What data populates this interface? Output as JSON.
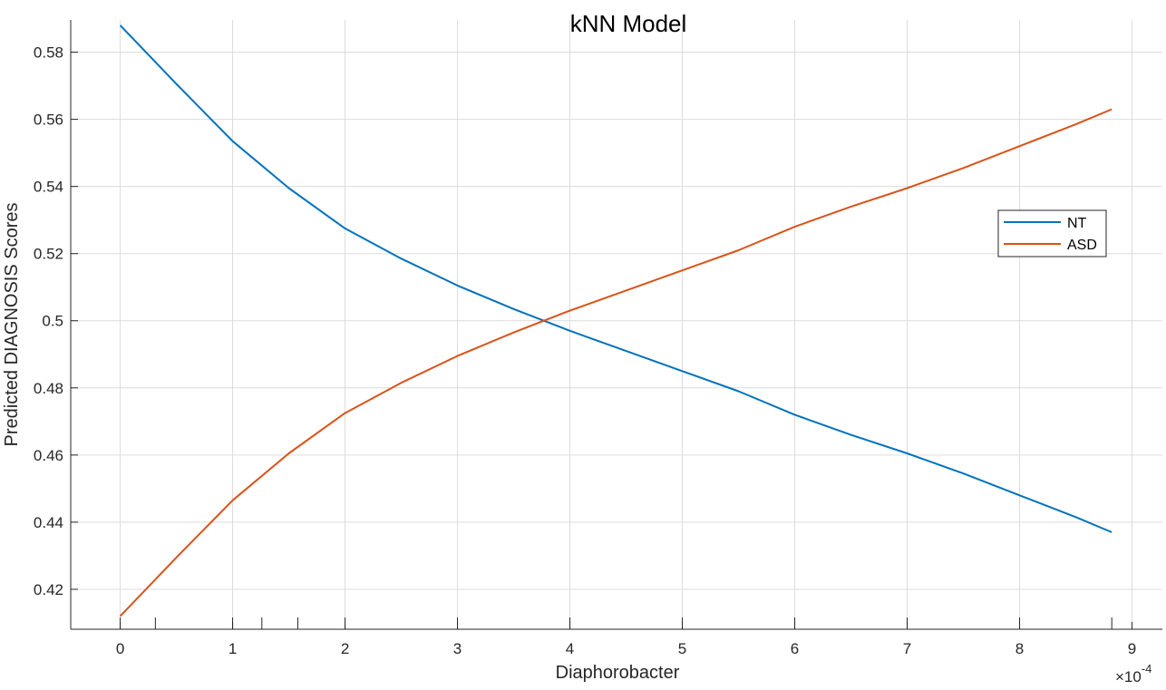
{
  "chart_data": {
    "type": "line",
    "title": "kNN Model",
    "xlabel": "Diaphorobacter",
    "ylabel": "Predicted DIAGNOSIS Scores",
    "x_exponent_label": "×10",
    "x_exponent_power": "-4",
    "xlim": [
      -4.4e-05,
      0.000927
    ],
    "ylim": [
      0.4081,
      0.5896
    ],
    "x_ticks": [
      0,
      0.0001,
      0.0002,
      0.0003,
      0.0004,
      0.0005,
      0.0006,
      0.0007,
      0.0008,
      0.0009
    ],
    "x_tick_labels": [
      "0",
      "1",
      "2",
      "3",
      "4",
      "5",
      "6",
      "7",
      "8",
      "9"
    ],
    "y_ticks": [
      0.42,
      0.44,
      0.46,
      0.48,
      0.5,
      0.52,
      0.54,
      0.56,
      0.58
    ],
    "y_tick_labels": [
      "0.42",
      "0.44",
      "0.46",
      "0.48",
      "0.5",
      "0.52",
      "0.54",
      "0.56",
      "0.58"
    ],
    "grid": true,
    "legend_position": "right",
    "x": [
      0,
      5e-05,
      0.0001,
      0.00015,
      0.0002,
      0.00025,
      0.0003,
      0.00035,
      0.0004,
      0.00045,
      0.0005,
      0.00055,
      0.0006,
      0.00065,
      0.0007,
      0.00075,
      0.0008,
      0.00085,
      0.000882
    ],
    "series": [
      {
        "name": "NT",
        "color": "#0072BD",
        "values": [
          0.588,
          0.5705,
          0.5535,
          0.5395,
          0.5275,
          0.5185,
          0.5105,
          0.5035,
          0.497,
          0.491,
          0.485,
          0.479,
          0.472,
          0.466,
          0.4605,
          0.4545,
          0.448,
          0.4415,
          0.437
        ]
      },
      {
        "name": "ASD",
        "color": "#D95319",
        "values": [
          0.412,
          0.4295,
          0.4465,
          0.4605,
          0.4725,
          0.4815,
          0.4895,
          0.4965,
          0.503,
          0.509,
          0.515,
          0.521,
          0.528,
          0.534,
          0.5395,
          0.5455,
          0.552,
          0.5585,
          0.563
        ]
      }
    ],
    "rug_x": [
      0,
      3.13e-05,
      0.0001,
      0.000126,
      0.000158,
      0.0002,
      0.0003,
      0.0004,
      0.0005,
      0.0006,
      0.0007,
      0.0008,
      0.000882
    ]
  }
}
